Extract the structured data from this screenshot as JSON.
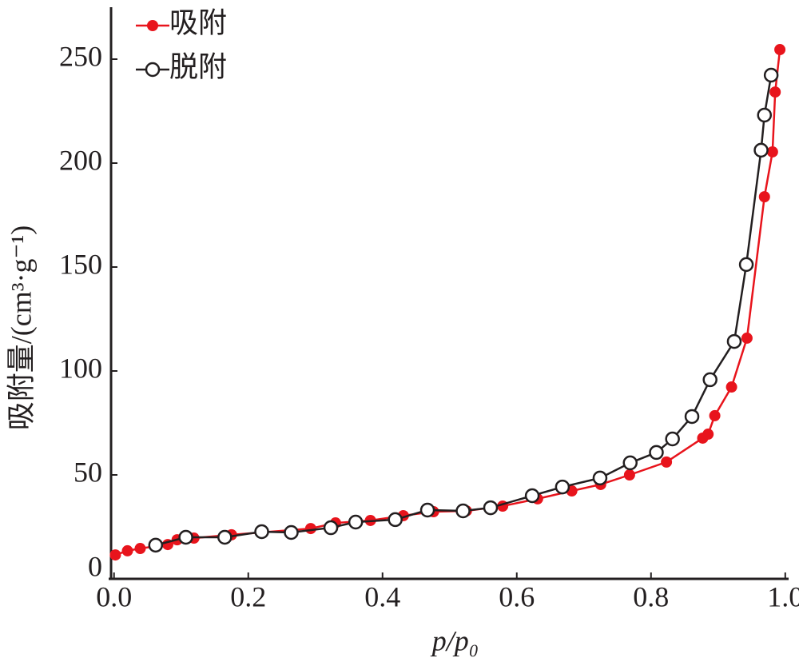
{
  "chart_data": {
    "type": "line",
    "x_label": "p/p₀",
    "y_label": "吸附量/(cm³·g⁻¹)",
    "xlim": [
      -0.008,
      1.005
    ],
    "ylim": [
      0,
      275
    ],
    "xticks": [
      {
        "value": 0,
        "label": "0.0"
      },
      {
        "value": 0.2,
        "label": "0.2"
      },
      {
        "value": 0.4,
        "label": "0.4"
      },
      {
        "value": 0.6,
        "label": "0.6"
      },
      {
        "value": 0.8,
        "label": "0.8"
      },
      {
        "value": 1,
        "label": "1.0"
      }
    ],
    "yticks": [
      0,
      50,
      100,
      150,
      200,
      250
    ],
    "legend": "upper left",
    "series": [
      {
        "name": "吸附",
        "color": "#e8141c",
        "marker": "filled",
        "x": [
          0.002,
          0.02,
          0.039,
          0.08,
          0.094,
          0.119,
          0.175,
          0.293,
          0.33,
          0.382,
          0.431,
          0.476,
          0.525,
          0.579,
          0.631,
          0.682,
          0.725,
          0.768,
          0.823,
          0.877,
          0.885,
          0.895,
          0.92,
          0.943,
          0.969,
          0.981,
          0.985,
          0.992
        ],
        "values": [
          11.5,
          13.5,
          14.6,
          16.5,
          18.8,
          19.6,
          21.2,
          24.2,
          26.9,
          28.1,
          30.4,
          32.3,
          32.7,
          35,
          38.5,
          42.3,
          45.4,
          50,
          56.2,
          67.7,
          69.6,
          78.5,
          92.3,
          115.8,
          183.8,
          205.4,
          234.2,
          254.6
        ]
      },
      {
        "name": "脱附",
        "color": "#231f20",
        "marker": "open",
        "x": [
          0.062,
          0.107,
          0.165,
          0.22,
          0.264,
          0.323,
          0.36,
          0.419,
          0.467,
          0.52,
          0.561,
          0.623,
          0.668,
          0.724,
          0.769,
          0.808,
          0.832,
          0.861,
          0.888,
          0.924,
          0.942,
          0.964,
          0.969,
          0.979
        ],
        "values": [
          16.2,
          20,
          20,
          22.7,
          22.3,
          24.6,
          27.3,
          28.5,
          33.1,
          32.7,
          34.2,
          40,
          44.2,
          48.5,
          55.8,
          60.8,
          67.3,
          78.1,
          95.8,
          114.2,
          151.2,
          206.2,
          223.1,
          242.3
        ]
      }
    ]
  }
}
